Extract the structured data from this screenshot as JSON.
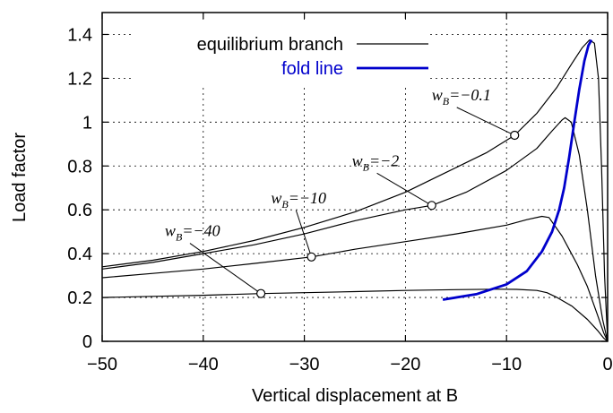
{
  "chart_data": {
    "type": "line",
    "title": "",
    "xlabel": "Vertical displacement at B",
    "ylabel": "Load factor",
    "xlim": [
      -50,
      0
    ],
    "ylim": [
      0,
      1.5
    ],
    "xticks": [
      -50,
      -40,
      -30,
      -20,
      -10,
      0
    ],
    "yticks": [
      0,
      0.2,
      0.4,
      0.6,
      0.8,
      1,
      1.2,
      1.4
    ],
    "xtick_labels": [
      "−50",
      "−40",
      "−30",
      "−20",
      "−10",
      "0"
    ],
    "ytick_labels": [
      "0",
      "0.2",
      "0.4",
      "0.6",
      "0.8",
      "1",
      "1.2",
      "1.4"
    ],
    "grid": true,
    "legend": {
      "position": "top-left",
      "entries": [
        {
          "label": "equilibrium branch",
          "color": "#000000"
        },
        {
          "label": "fold line",
          "color": "#0000cc"
        }
      ]
    },
    "series": [
      {
        "name": "equilibrium branch",
        "color": "#000000",
        "x": [
          -50,
          -45,
          -40,
          -35,
          -30,
          -25,
          -20,
          -16,
          -12,
          -9.2,
          -7,
          -5,
          -3.5,
          -2.5,
          -1.8,
          -1.3,
          -0.9,
          -0.6,
          -0.3,
          0
        ],
        "y": [
          0.34,
          0.37,
          0.41,
          0.46,
          0.52,
          0.59,
          0.68,
          0.77,
          0.86,
          0.94,
          1.04,
          1.16,
          1.27,
          1.34,
          1.375,
          1.36,
          1.2,
          0.8,
          0.3,
          0
        ]
      },
      {
        "name": "equilibrium branch",
        "color": "#000000",
        "x": [
          -50,
          -45,
          -40,
          -35,
          -30,
          -25,
          -20,
          -17.4,
          -14,
          -10,
          -7,
          -5.5,
          -4.5,
          -4.2,
          -3.6,
          -2.8,
          -2,
          -1.2,
          -0.5,
          0
        ],
        "y": [
          0.33,
          0.36,
          0.4,
          0.44,
          0.49,
          0.55,
          0.6,
          0.62,
          0.68,
          0.78,
          0.88,
          0.96,
          1.01,
          1.02,
          1.0,
          0.85,
          0.6,
          0.3,
          0.1,
          0
        ]
      },
      {
        "name": "equilibrium branch",
        "color": "#000000",
        "x": [
          -50,
          -45,
          -40,
          -35,
          -29.3,
          -25,
          -20,
          -15,
          -10,
          -8,
          -6.5,
          -5.8,
          -4.5,
          -3,
          -2,
          -1,
          -0.4,
          0
        ],
        "y": [
          0.29,
          0.31,
          0.33,
          0.355,
          0.385,
          0.42,
          0.455,
          0.49,
          0.53,
          0.555,
          0.57,
          0.565,
          0.48,
          0.35,
          0.25,
          0.12,
          0.04,
          0
        ]
      },
      {
        "name": "equilibrium branch",
        "color": "#000000",
        "x": [
          -50,
          -45,
          -40,
          -34.3,
          -30,
          -25,
          -20,
          -15,
          -11,
          -9,
          -7,
          -6,
          -5,
          -3.5,
          -2,
          -1,
          -0.4,
          0
        ],
        "y": [
          0.2,
          0.205,
          0.21,
          0.218,
          0.222,
          0.227,
          0.232,
          0.236,
          0.238,
          0.237,
          0.232,
          0.222,
          0.2,
          0.16,
          0.1,
          0.05,
          0.015,
          0
        ]
      },
      {
        "name": "fold line",
        "color": "#0000cc",
        "x": [
          -16.3,
          -13,
          -10,
          -8,
          -6.5,
          -5.5,
          -4.8,
          -4.3,
          -3.8,
          -3.3,
          -2.8,
          -2.3,
          -1.9,
          -1.6
        ],
        "y": [
          0.19,
          0.215,
          0.26,
          0.32,
          0.41,
          0.5,
          0.6,
          0.7,
          0.84,
          1.0,
          1.15,
          1.28,
          1.35,
          1.375
        ]
      }
    ],
    "annotations": [
      {
        "var": "w",
        "sub": "B",
        "rest": "=−0.1",
        "point": {
          "x": -9.2,
          "y": 0.94
        },
        "text_at": {
          "x": -17.4,
          "y": 1.1
        }
      },
      {
        "var": "w",
        "sub": "B",
        "rest": "=−2",
        "point": {
          "x": -17.4,
          "y": 0.62
        },
        "text_at": {
          "x": -25.3,
          "y": 0.8
        }
      },
      {
        "var": "w",
        "sub": "B",
        "rest": "=−10",
        "point": {
          "x": -29.3,
          "y": 0.385
        },
        "text_at": {
          "x": -33.3,
          "y": 0.63
        }
      },
      {
        "var": "w",
        "sub": "B",
        "rest": "=−40",
        "point": {
          "x": -34.3,
          "y": 0.218
        },
        "text_at": {
          "x": -43.8,
          "y": 0.48
        }
      }
    ]
  }
}
